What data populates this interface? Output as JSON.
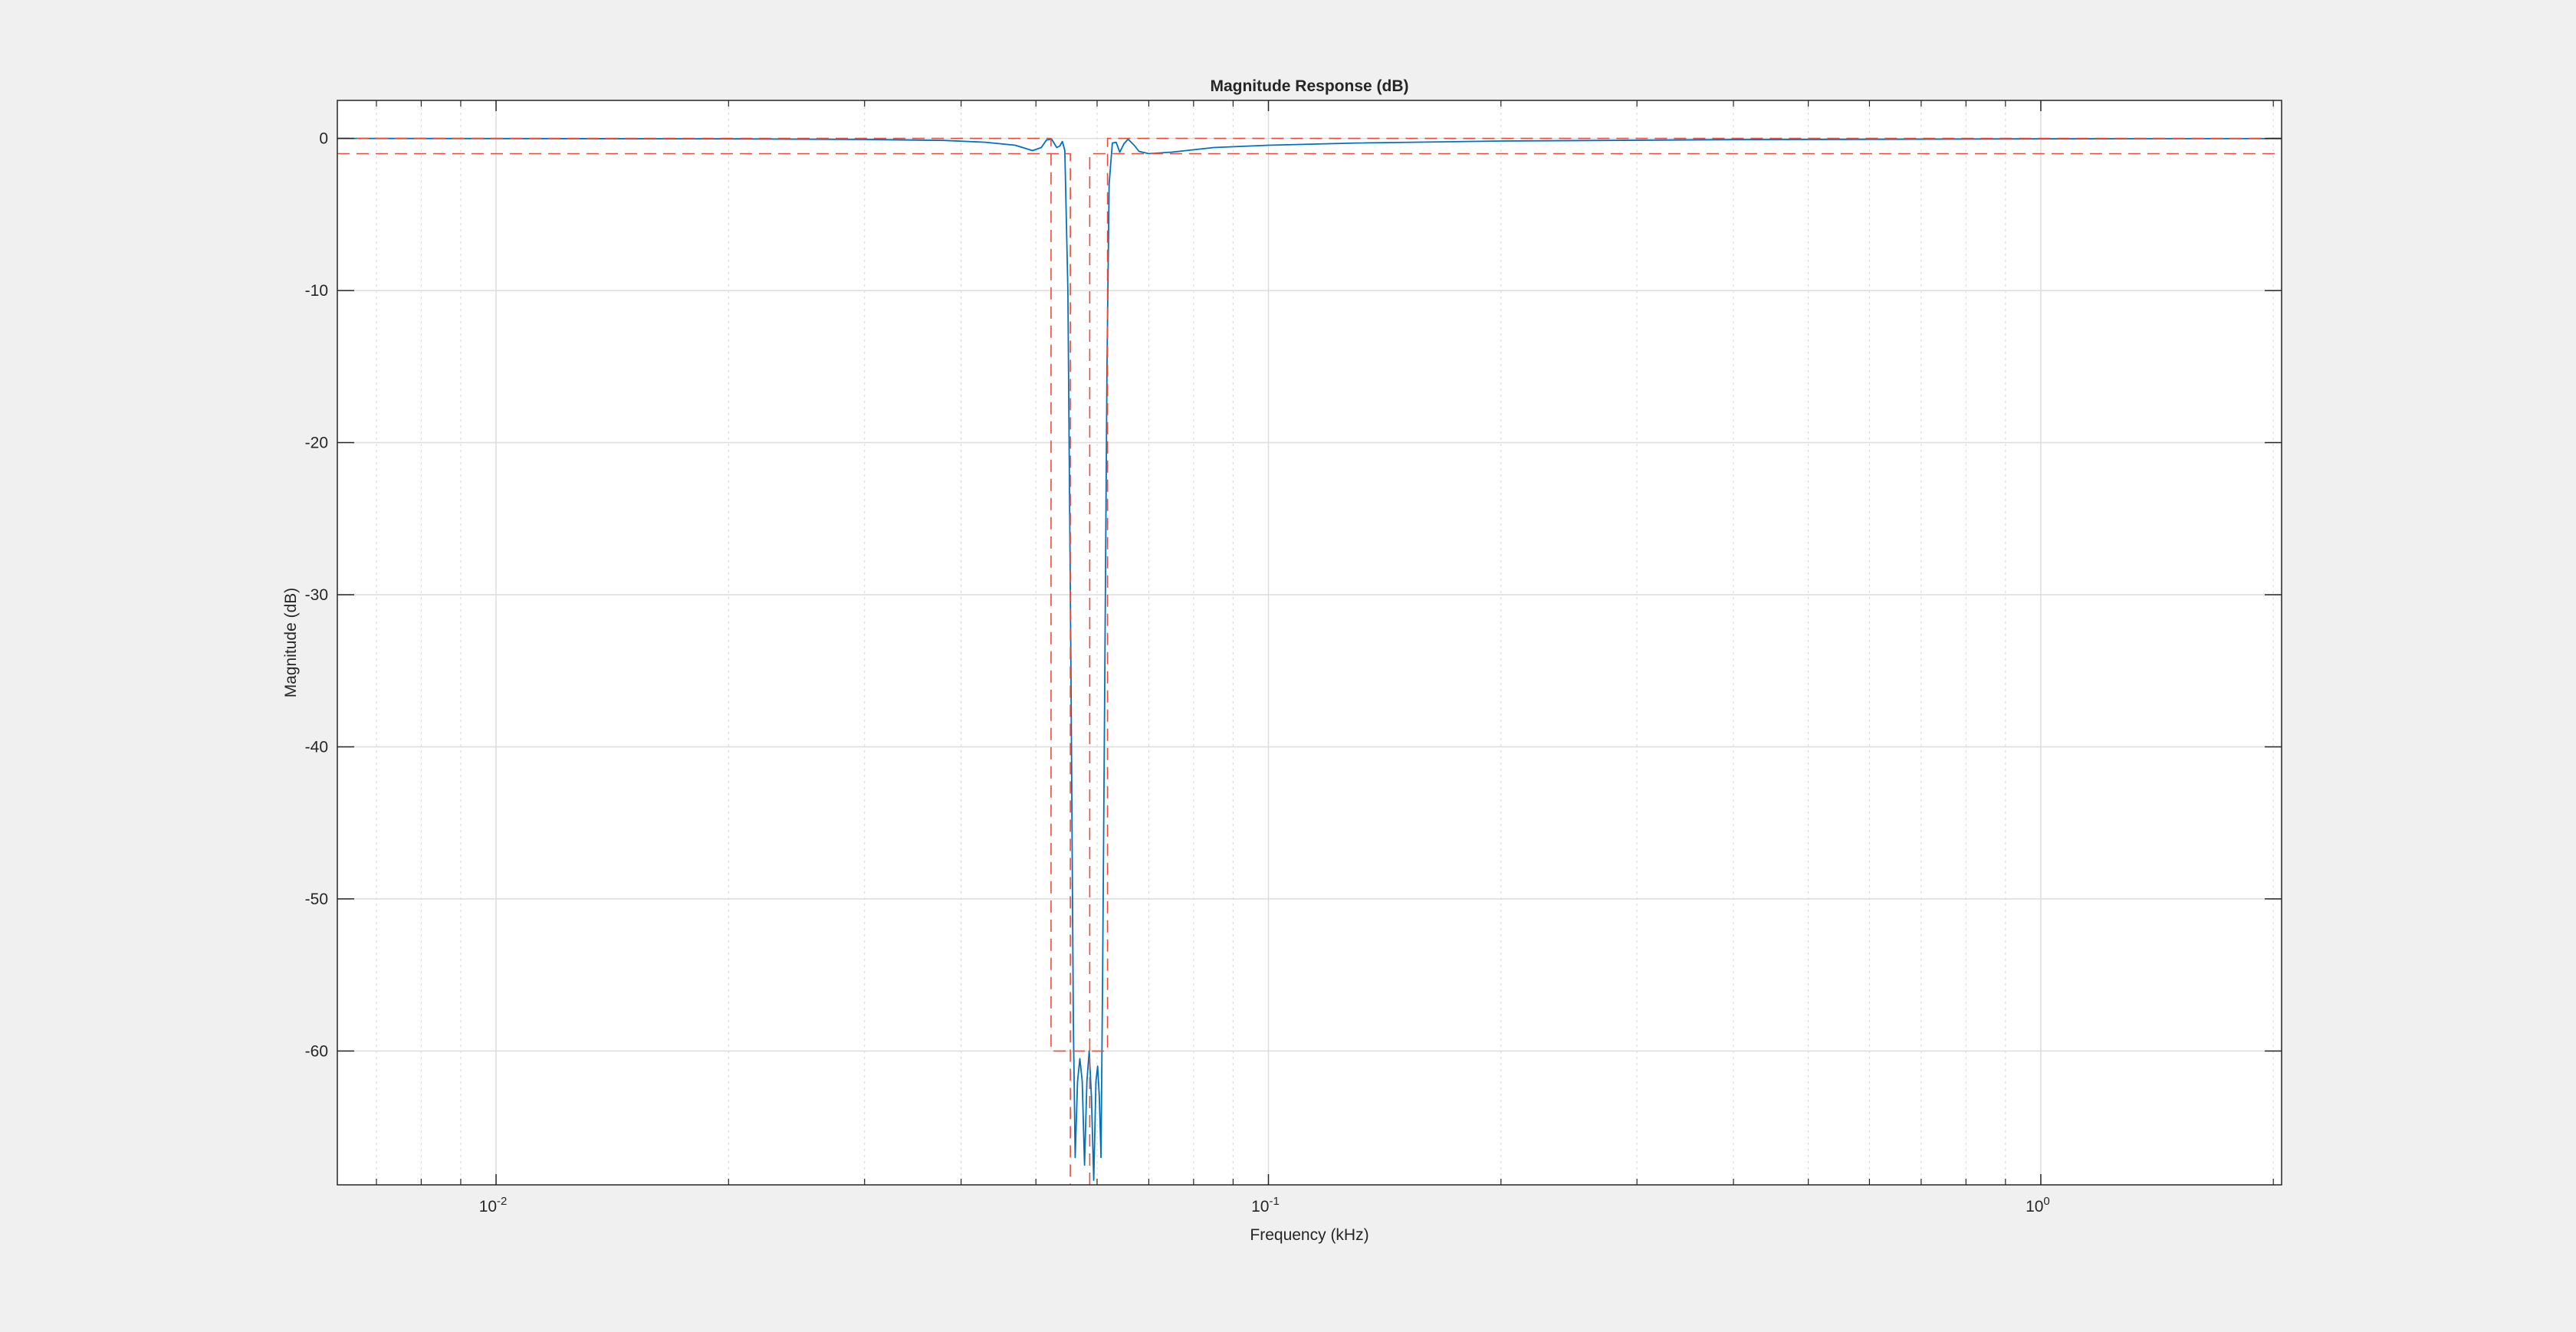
{
  "window": {
    "background": "#f0f0f0"
  },
  "chart_data": {
    "type": "line",
    "title": "Magnitude Response (dB)",
    "xlabel": "Frequency (kHz)",
    "ylabel": "Magnitude (dB)",
    "xscale": "log",
    "xlim": [
      0.00623,
      2.05
    ],
    "ylim": [
      -68.8,
      2.5
    ],
    "grid": true,
    "minor_grid_x": true,
    "legend": "none",
    "x_ticks": [
      {
        "value": 0.01,
        "base": "10",
        "exp": "-2"
      },
      {
        "value": 0.1,
        "base": "10",
        "exp": "-1"
      },
      {
        "value": 1,
        "base": "10",
        "exp": "0"
      }
    ],
    "y_ticks": [
      0,
      -10,
      -20,
      -30,
      -40,
      -50,
      -60
    ],
    "y_tick_labels": [
      "0",
      "-10",
      "-20",
      "-30",
      "-40",
      "-50",
      "-60"
    ],
    "colors": {
      "response": "#0072bd",
      "mask": "#e74c3c",
      "grid": "#dcdcdc",
      "axes_bg": "#ffffff"
    },
    "series": [
      {
        "role": "magnitude-response",
        "style": "solid",
        "points": [
          [
            0.00623,
            0
          ],
          [
            0.01,
            -0.01
          ],
          [
            0.02,
            -0.03
          ],
          [
            0.03,
            -0.07
          ],
          [
            0.038,
            -0.13
          ],
          [
            0.043,
            -0.25
          ],
          [
            0.047,
            -0.45
          ],
          [
            0.0495,
            -0.8
          ],
          [
            0.0508,
            -0.6
          ],
          [
            0.0516,
            -0.1
          ],
          [
            0.0524,
            -0.05
          ],
          [
            0.0532,
            -0.6
          ],
          [
            0.0537,
            -0.5
          ],
          [
            0.0541,
            -0.2
          ],
          [
            0.0545,
            -0.8
          ],
          [
            0.055,
            -10
          ],
          [
            0.0555,
            -35
          ],
          [
            0.0559,
            -58
          ],
          [
            0.0562,
            -67
          ],
          [
            0.0566,
            -62
          ],
          [
            0.057,
            -60.5
          ],
          [
            0.0574,
            -62
          ],
          [
            0.0578,
            -67.5
          ],
          [
            0.0582,
            -62
          ],
          [
            0.0586,
            -60
          ],
          [
            0.059,
            -63
          ],
          [
            0.0594,
            -68.5
          ],
          [
            0.0598,
            -62
          ],
          [
            0.0601,
            -61
          ],
          [
            0.0604,
            -63
          ],
          [
            0.0607,
            -67
          ],
          [
            0.061,
            -55
          ],
          [
            0.0614,
            -35
          ],
          [
            0.0618,
            -15
          ],
          [
            0.0622,
            -3
          ],
          [
            0.0628,
            -0.3
          ],
          [
            0.0635,
            -0.25
          ],
          [
            0.0642,
            -0.9
          ],
          [
            0.065,
            -0.35
          ],
          [
            0.0658,
            -0.05
          ],
          [
            0.067,
            -0.45
          ],
          [
            0.068,
            -0.85
          ],
          [
            0.07,
            -1.0
          ],
          [
            0.075,
            -0.9
          ],
          [
            0.085,
            -0.6
          ],
          [
            0.1,
            -0.45
          ],
          [
            0.13,
            -0.3
          ],
          [
            0.2,
            -0.17
          ],
          [
            0.4,
            -0.08
          ],
          [
            1,
            -0.03
          ],
          [
            2.05,
            -0.01
          ]
        ]
      },
      {
        "role": "upper-bound-mask",
        "style": "dashed",
        "points": [
          [
            0.00623,
            0
          ],
          [
            0.0523,
            0
          ],
          [
            0.0523,
            -60
          ],
          [
            0.0619,
            -60
          ],
          [
            0.0619,
            0
          ],
          [
            2.05,
            0
          ]
        ]
      },
      {
        "role": "lower-bound-mask",
        "style": "dashed",
        "points": [
          [
            0.00623,
            -1
          ],
          [
            0.0554,
            -1
          ],
          [
            0.0554,
            -68.8
          ],
          null,
          [
            0.0587,
            -68.8
          ],
          [
            0.0587,
            -1
          ],
          [
            2.05,
            -1
          ]
        ]
      }
    ]
  }
}
